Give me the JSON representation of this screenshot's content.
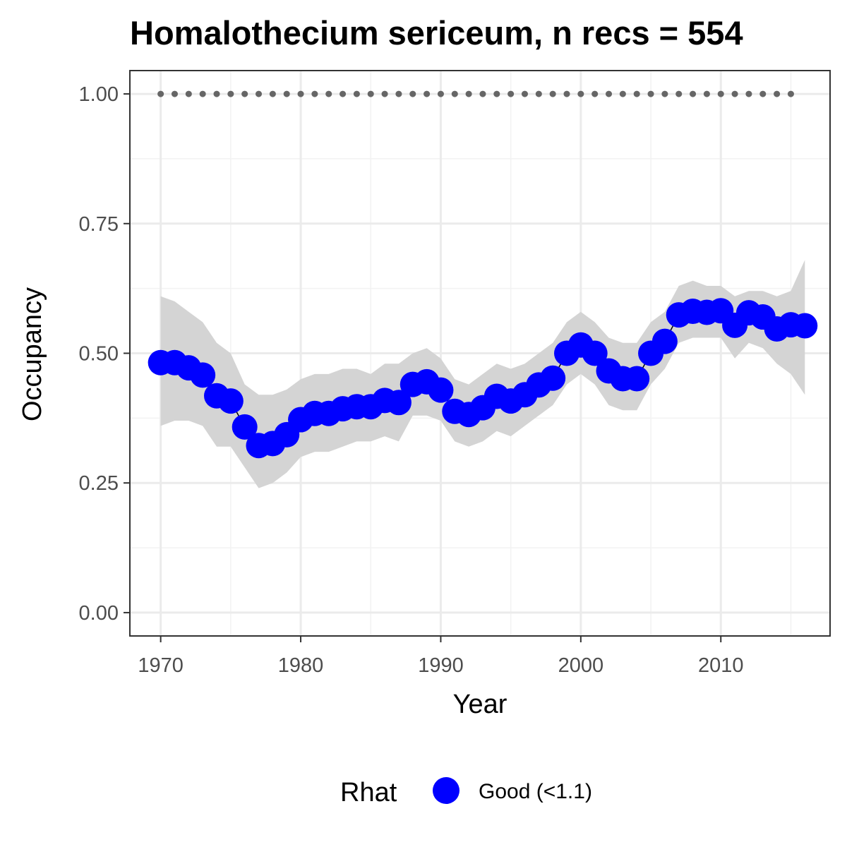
{
  "chart_data": {
    "type": "line",
    "title": "Homalothecium sericeum, n recs = 554",
    "xlabel": "Year",
    "ylabel": "Occupancy",
    "xlim": [
      1967.8,
      2017.8
    ],
    "ylim": [
      -0.045,
      1.045
    ],
    "x_ticks": [
      1970,
      1980,
      1990,
      2000,
      2010
    ],
    "y_ticks": [
      0.0,
      0.25,
      0.5,
      0.75,
      1.0
    ],
    "x_tick_labels": [
      "1970",
      "1980",
      "1990",
      "2000",
      "2010"
    ],
    "y_tick_labels": [
      "0.00",
      "0.25",
      "0.50",
      "0.75",
      "1.00"
    ],
    "grid": true,
    "x": [
      1970,
      1971,
      1972,
      1973,
      1974,
      1975,
      1976,
      1977,
      1978,
      1979,
      1980,
      1981,
      1982,
      1983,
      1984,
      1985,
      1986,
      1987,
      1988,
      1989,
      1990,
      1991,
      1992,
      1993,
      1994,
      1995,
      1996,
      1997,
      1998,
      1999,
      2000,
      2001,
      2002,
      2003,
      2004,
      2005,
      2006,
      2007,
      2008,
      2009,
      2010,
      2011,
      2012,
      2013,
      2014,
      2015,
      2016
    ],
    "series": [
      {
        "name": "Good (<1.1)",
        "values": [
          0.482,
          0.482,
          0.472,
          0.458,
          0.418,
          0.408,
          0.358,
          0.322,
          0.326,
          0.343,
          0.372,
          0.384,
          0.384,
          0.393,
          0.397,
          0.397,
          0.409,
          0.405,
          0.44,
          0.445,
          0.429,
          0.388,
          0.382,
          0.395,
          0.417,
          0.408,
          0.42,
          0.439,
          0.452,
          0.5,
          0.516,
          0.5,
          0.466,
          0.451,
          0.451,
          0.5,
          0.523,
          0.574,
          0.581,
          0.579,
          0.582,
          0.554,
          0.578,
          0.57,
          0.547,
          0.555,
          0.553
        ],
        "lower": [
          0.36,
          0.37,
          0.37,
          0.36,
          0.32,
          0.32,
          0.28,
          0.24,
          0.25,
          0.27,
          0.3,
          0.31,
          0.31,
          0.32,
          0.33,
          0.33,
          0.34,
          0.33,
          0.38,
          0.38,
          0.37,
          0.33,
          0.32,
          0.33,
          0.35,
          0.34,
          0.36,
          0.38,
          0.4,
          0.44,
          0.46,
          0.44,
          0.4,
          0.39,
          0.39,
          0.44,
          0.47,
          0.52,
          0.53,
          0.53,
          0.53,
          0.49,
          0.52,
          0.51,
          0.48,
          0.46,
          0.42
        ],
        "upper": [
          0.61,
          0.6,
          0.58,
          0.56,
          0.52,
          0.5,
          0.44,
          0.42,
          0.42,
          0.43,
          0.45,
          0.46,
          0.46,
          0.47,
          0.47,
          0.46,
          0.48,
          0.48,
          0.5,
          0.51,
          0.49,
          0.45,
          0.44,
          0.46,
          0.48,
          0.47,
          0.48,
          0.5,
          0.52,
          0.56,
          0.58,
          0.56,
          0.53,
          0.52,
          0.52,
          0.56,
          0.58,
          0.63,
          0.64,
          0.63,
          0.63,
          0.61,
          0.62,
          0.62,
          0.61,
          0.62,
          0.68
        ],
        "color": "#0000ff"
      }
    ],
    "reference_series": {
      "x": [
        1970,
        1971,
        1972,
        1973,
        1974,
        1975,
        1976,
        1977,
        1978,
        1979,
        1980,
        1981,
        1982,
        1983,
        1984,
        1985,
        1986,
        1987,
        1988,
        1989,
        1990,
        1991,
        1992,
        1993,
        1994,
        1995,
        1996,
        1997,
        1998,
        1999,
        2000,
        2001,
        2002,
        2003,
        2004,
        2005,
        2006,
        2007,
        2008,
        2009,
        2010,
        2011,
        2012,
        2013,
        2014,
        2015
      ],
      "value": 1.0,
      "color": "#666666"
    },
    "ribbon_color": "#d4d4d4",
    "legend": {
      "title": "Rhat",
      "entries": [
        {
          "label": "Good (<1.1)",
          "color": "#0000ff"
        }
      ],
      "placement": "bottom"
    }
  }
}
